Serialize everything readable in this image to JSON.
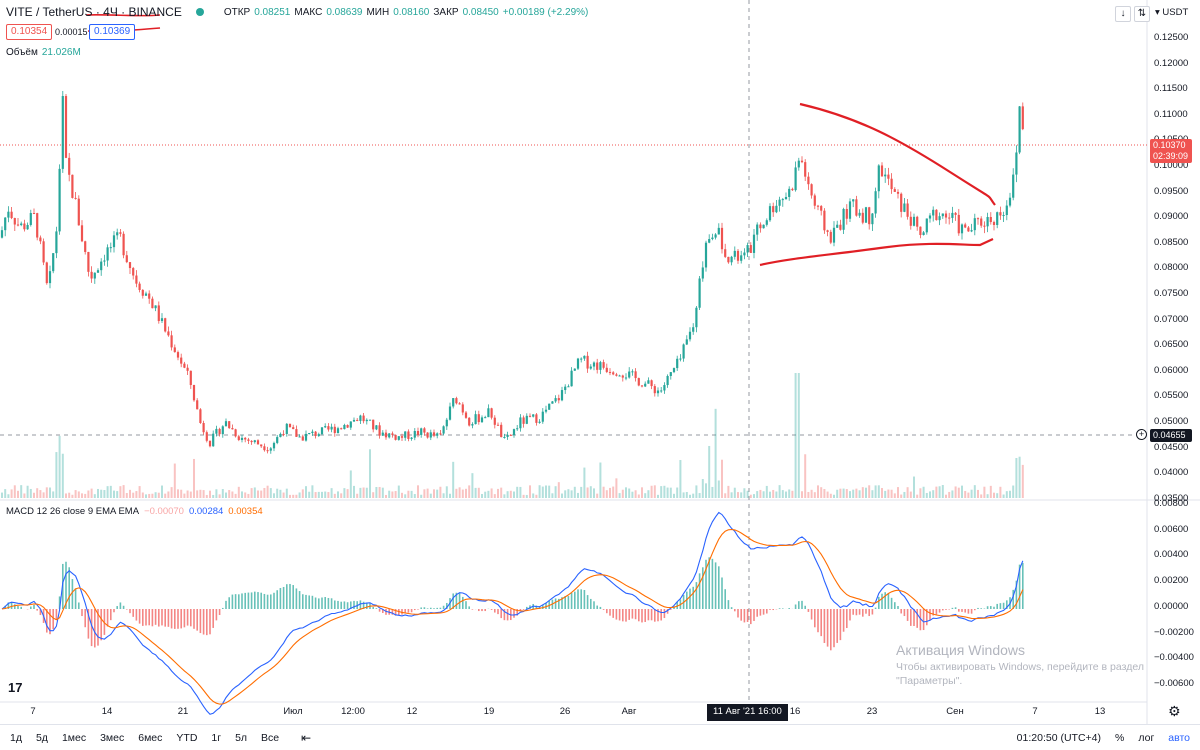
{
  "header": {
    "symbol": "VITE / TetherUS · 4Ч · BINANCE",
    "ohlc": [
      {
        "label": "ОТКР",
        "value": "0.08251"
      },
      {
        "label": "МАКС",
        "value": "0.08639"
      },
      {
        "label": "МИН",
        "value": "0.08160"
      },
      {
        "label": "ЗАКР",
        "value": "0.08450"
      }
    ],
    "change": "+0.00189 (+2.29%)",
    "bid": "0.10354",
    "spread": "0.00015",
    "ask": "0.10369",
    "volume_label": "Объём",
    "volume_value": "21.026M"
  },
  "macd": {
    "label": "MACD 12 26 close 9 EMA EMA",
    "hist": "−0.00070",
    "macd": "0.00284",
    "signal": "0.00354",
    "y_ticks": [
      "0.00800",
      "0.00600",
      "0.00400",
      "0.00200",
      "0.00000",
      "−0.00200",
      "−0.00400",
      "−0.00600"
    ]
  },
  "axis": {
    "unit": "USDT",
    "y_ticks": [
      "0.12500",
      "0.12000",
      "0.11500",
      "0.11000",
      "0.10500",
      "0.10000",
      "0.09500",
      "0.09000",
      "0.08500",
      "0.08000",
      "0.07500",
      "0.07000",
      "0.06500",
      "0.06000",
      "0.05500",
      "0.05000",
      "0.04500",
      "0.04000",
      "0.03500"
    ],
    "x_ticks": [
      "7",
      "14",
      "21",
      "Июл",
      "12:00",
      "12",
      "19",
      "26",
      "Авг",
      "16",
      "23",
      "Сен",
      "7",
      "13"
    ],
    "last_price": "0.10370",
    "last_price_timer": "02:39:09",
    "crosshair_price": "0.04655",
    "crosshair_time": "11 Авг '21   16:00"
  },
  "colors": {
    "up": "#26a69a",
    "down": "#ef5350",
    "macd_line": "#2962ff",
    "signal_line": "#ff6d00",
    "drawing": "#e01f25"
  },
  "icons": {
    "logo": "tradingview-logo-icon",
    "settings": "gear-icon",
    "compare": "compare-icon",
    "arrow": "down-arrow-icon",
    "crosshair_plus": "plus-circle-icon"
  },
  "toolbar": {
    "periods": [
      "1д",
      "5д",
      "1мес",
      "3мес",
      "6мес",
      "YTD",
      "1г",
      "5л",
      "Все"
    ],
    "time": "01:20:50 (UTC+4)",
    "percent": "%",
    "log": "лог",
    "auto": "авто"
  },
  "watermark": {
    "title": "Активация Windows",
    "text": "Чтобы активировать Windows, перейдите в раздел \"Параметры\"."
  },
  "chart_data": {
    "type": "candlestick",
    "title": "VITE / TetherUS · 4Ч · BINANCE",
    "ylim": [
      0.035,
      0.125
    ],
    "close_path": [
      [
        0,
        0.086
      ],
      [
        8,
        0.092
      ],
      [
        20,
        0.088
      ],
      [
        35,
        0.09
      ],
      [
        48,
        0.075
      ],
      [
        58,
        0.09
      ],
      [
        62,
        0.115
      ],
      [
        66,
        0.1
      ],
      [
        75,
        0.093
      ],
      [
        90,
        0.078
      ],
      [
        105,
        0.083
      ],
      [
        120,
        0.086
      ],
      [
        135,
        0.078
      ],
      [
        150,
        0.074
      ],
      [
        165,
        0.068
      ],
      [
        178,
        0.063
      ],
      [
        190,
        0.058
      ],
      [
        200,
        0.05
      ],
      [
        210,
        0.046
      ],
      [
        225,
        0.05
      ],
      [
        240,
        0.047
      ],
      [
        255,
        0.046
      ],
      [
        270,
        0.045
      ],
      [
        285,
        0.049
      ],
      [
        300,
        0.047
      ],
      [
        320,
        0.048
      ],
      [
        340,
        0.049
      ],
      [
        360,
        0.051
      ],
      [
        380,
        0.048
      ],
      [
        400,
        0.047
      ],
      [
        420,
        0.048
      ],
      [
        440,
        0.047
      ],
      [
        455,
        0.055
      ],
      [
        470,
        0.05
      ],
      [
        490,
        0.052
      ],
      [
        505,
        0.046
      ],
      [
        520,
        0.05
      ],
      [
        540,
        0.051
      ],
      [
        560,
        0.055
      ],
      [
        580,
        0.062
      ],
      [
        600,
        0.061
      ],
      [
        620,
        0.06
      ],
      [
        640,
        0.058
      ],
      [
        660,
        0.056
      ],
      [
        680,
        0.062
      ],
      [
        695,
        0.07
      ],
      [
        705,
        0.085
      ],
      [
        715,
        0.088
      ],
      [
        730,
        0.082
      ],
      [
        745,
        0.082
      ],
      [
        760,
        0.088
      ],
      [
        775,
        0.093
      ],
      [
        790,
        0.095
      ],
      [
        800,
        0.102
      ],
      [
        815,
        0.092
      ],
      [
        830,
        0.086
      ],
      [
        850,
        0.092
      ],
      [
        870,
        0.09
      ],
      [
        880,
        0.1
      ],
      [
        895,
        0.094
      ],
      [
        910,
        0.09
      ],
      [
        920,
        0.086
      ],
      [
        935,
        0.091
      ],
      [
        950,
        0.09
      ],
      [
        965,
        0.087
      ],
      [
        980,
        0.089
      ],
      [
        995,
        0.09
      ],
      [
        1005,
        0.092
      ],
      [
        1015,
        0.098
      ],
      [
        1020,
        0.113
      ],
      [
        1025,
        0.104
      ]
    ]
  }
}
